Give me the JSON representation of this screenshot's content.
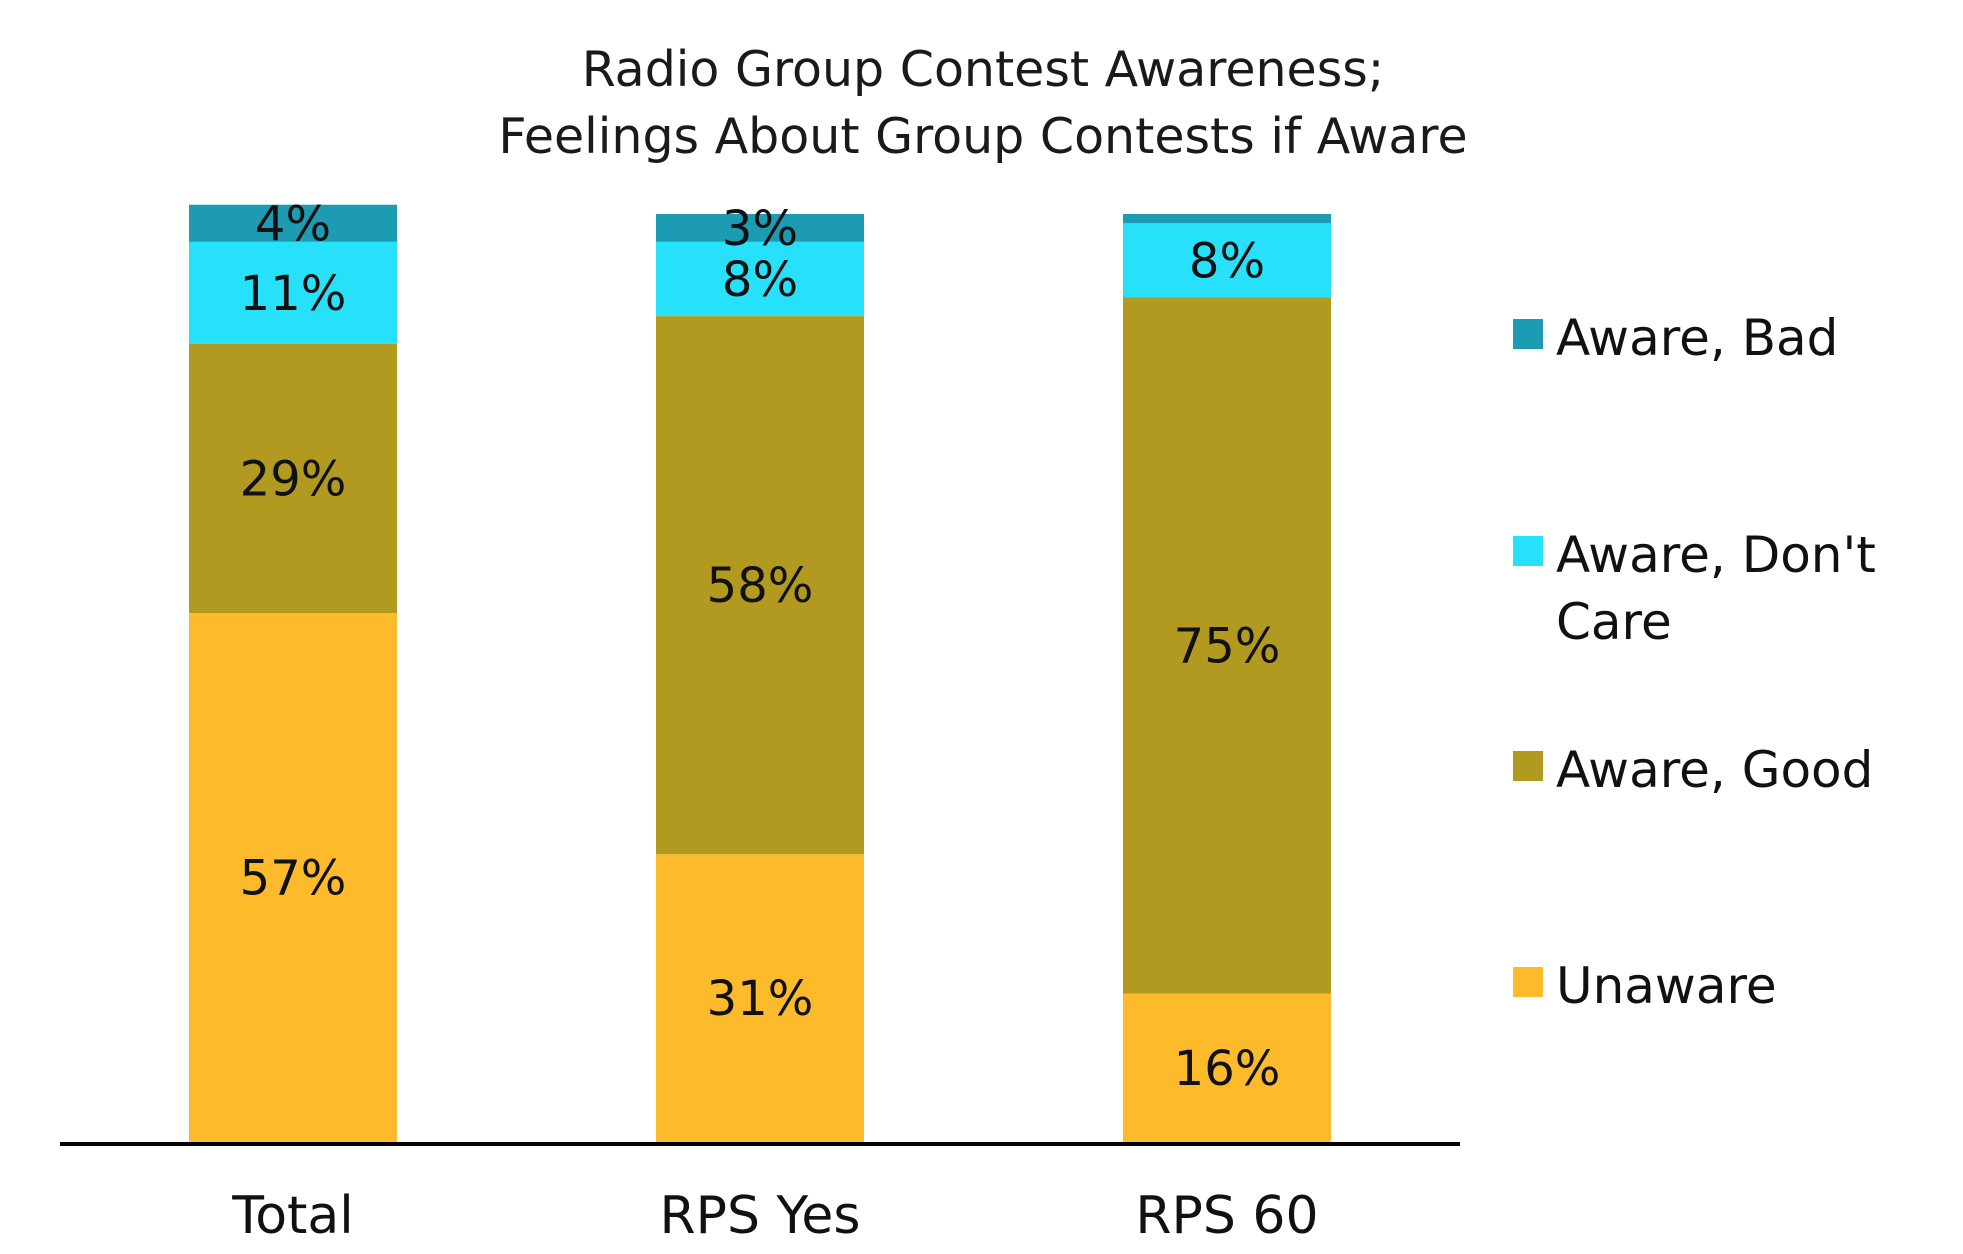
{
  "chart_data": {
    "type": "bar",
    "stacked": true,
    "title": [
      "Radio Group Contest Awareness;",
      "Feelings About Group Contests if Aware"
    ],
    "categories": [
      "Total",
      "RPS Yes",
      "RPS 60"
    ],
    "ylim": [
      0,
      100
    ],
    "grid": false,
    "legend_position": "right",
    "series": [
      {
        "name": "Unaware",
        "color": "#FDBB2B",
        "values": [
          57,
          31,
          16
        ],
        "labels": [
          "57%",
          "31%",
          "16%"
        ]
      },
      {
        "name": "Aware, Good",
        "color": "#B29A20",
        "values": [
          29,
          58,
          75
        ],
        "labels": [
          "29%",
          "58%",
          "75%"
        ]
      },
      {
        "name": "Aware, Don't Care",
        "color": "#27E1FB",
        "values": [
          11,
          8,
          8
        ],
        "labels": [
          "11%",
          "8%",
          "8%"
        ]
      },
      {
        "name": "Aware, Bad",
        "color": "#1C9BB2",
        "values": [
          4,
          3,
          1
        ],
        "labels": [
          "4%",
          "3%",
          ""
        ]
      }
    ],
    "legend": [
      {
        "name": "Aware, Bad",
        "lines": [
          "Aware, Bad"
        ],
        "color": "#1C9BB2"
      },
      {
        "name": "Aware, Don't Care",
        "lines": [
          "Aware, Don't",
          "Care"
        ],
        "color": "#27E1FB"
      },
      {
        "name": "Aware, Good",
        "lines": [
          "Aware, Good"
        ],
        "color": "#B29A20"
      },
      {
        "name": "Unaware",
        "lines": [
          "Unaware"
        ],
        "color": "#FDBB2B"
      }
    ]
  }
}
